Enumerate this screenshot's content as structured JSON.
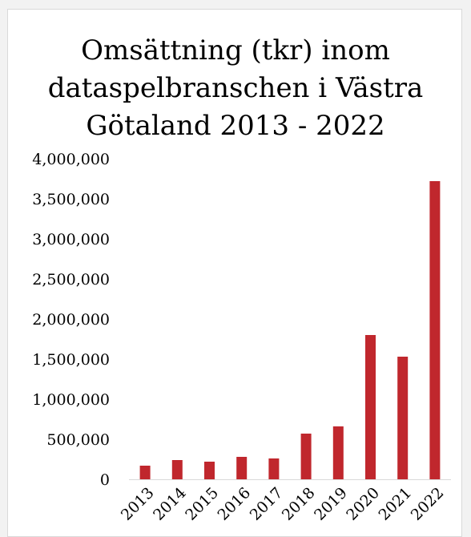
{
  "chart_data": {
    "type": "bar",
    "title": "Omsättning (tkr) inom dataspelbranschen i Västra Götaland 2013 - 2022",
    "title_lines": [
      "Omsättning (tkr) inom",
      "dataspelbranschen i Västra",
      "Götaland 2013 - 2022"
    ],
    "categories": [
      "2013",
      "2014",
      "2015",
      "2016",
      "2017",
      "2018",
      "2019",
      "2020",
      "2021",
      "2022"
    ],
    "values": [
      170000,
      240000,
      220000,
      280000,
      260000,
      570000,
      660000,
      1800000,
      1530000,
      3720000
    ],
    "ylim": [
      0,
      4000000
    ],
    "yticks": [
      0,
      500000,
      1000000,
      1500000,
      2000000,
      2500000,
      3000000,
      3500000,
      4000000
    ],
    "ytick_labels": [
      "0",
      "500,000",
      "1,000,000",
      "1,500,000",
      "2,000,000",
      "2,500,000",
      "3,000,000",
      "3,500,000",
      "4,000,000"
    ],
    "xlabel": "",
    "ylabel": "",
    "grid": false,
    "legend": "none",
    "bar_color": "#c0272d"
  }
}
